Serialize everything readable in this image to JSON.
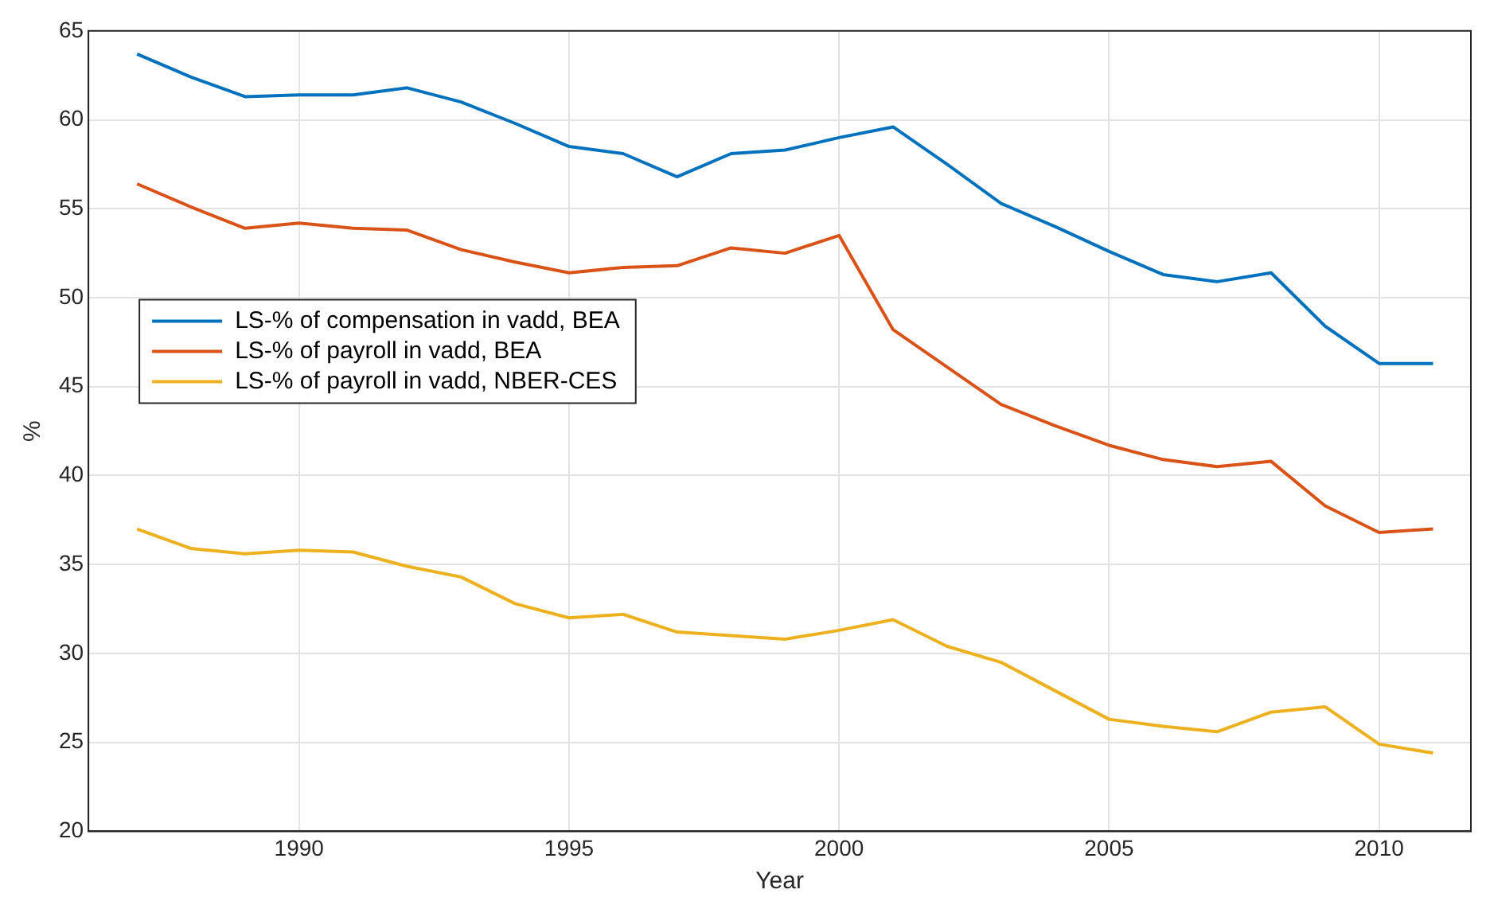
{
  "chart_data": {
    "type": "line",
    "xlabel": "Year",
    "ylabel": "%",
    "x": [
      1987,
      1988,
      1989,
      1990,
      1991,
      1992,
      1993,
      1994,
      1995,
      1996,
      1997,
      1998,
      1999,
      2000,
      2001,
      2002,
      2003,
      2004,
      2005,
      2006,
      2007,
      2008,
      2009,
      2010,
      2011
    ],
    "series": [
      {
        "name": "LS-% of compensation in vadd, BEA",
        "color": "#0072bd",
        "values": [
          63.7,
          62.4,
          61.3,
          61.4,
          61.4,
          61.8,
          61.0,
          59.8,
          58.5,
          58.1,
          56.8,
          58.1,
          58.3,
          59.0,
          59.6,
          57.5,
          55.3,
          54.0,
          52.6,
          51.3,
          50.9,
          51.4,
          48.4,
          46.3,
          46.3
        ]
      },
      {
        "name": "LS-% of payroll in vadd, BEA",
        "color": "#d95319",
        "values": [
          56.4,
          55.1,
          53.9,
          54.2,
          53.9,
          53.8,
          52.7,
          52.0,
          51.4,
          51.7,
          51.8,
          52.8,
          52.5,
          53.5,
          48.2,
          46.1,
          44.0,
          42.8,
          41.7,
          40.9,
          40.5,
          40.8,
          38.3,
          36.8,
          37.0
        ]
      },
      {
        "name": "LS-% of payroll in vadd, NBER-CES",
        "color": "#edb120",
        "values": [
          37.0,
          35.9,
          35.6,
          35.8,
          35.7,
          34.9,
          34.3,
          32.8,
          32.0,
          32.2,
          31.2,
          31.0,
          30.8,
          31.3,
          31.9,
          30.4,
          29.5,
          27.9,
          26.3,
          25.9,
          25.6,
          26.7,
          27.0,
          24.9,
          24.4
        ]
      }
    ],
    "xlim": [
      1986.1,
      2011.7
    ],
    "xticks": [
      1990,
      1995,
      2000,
      2005,
      2010
    ],
    "ylim": [
      20,
      65
    ],
    "yticks": [
      20,
      25,
      30,
      35,
      40,
      45,
      50,
      55,
      60,
      65
    ],
    "grid": true,
    "legend": "left",
    "marker": "none",
    "line_style": "solid"
  }
}
